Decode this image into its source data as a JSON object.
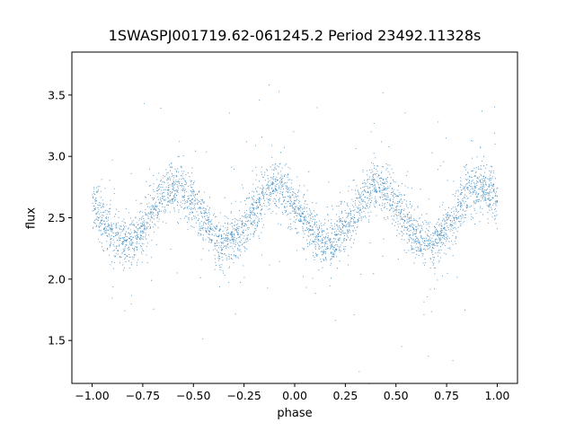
{
  "chart_data": {
    "type": "scatter",
    "title": "1SWASPJ001719.62-061245.2 Period 23492.11328s",
    "xlabel": "phase",
    "ylabel": "flux",
    "xlim": [
      -1.1,
      1.1
    ],
    "ylim": [
      1.15,
      3.85
    ],
    "xticks": [
      "−1.00",
      "−0.75",
      "−0.50",
      "−0.25",
      "0.00",
      "0.25",
      "0.50",
      "0.75",
      "1.00"
    ],
    "yticks": [
      "1.5",
      "2.0",
      "2.5",
      "3.0",
      "3.5"
    ],
    "grid": false,
    "legend": "none",
    "marker_color": "#1f77b4",
    "series": [
      {
        "x_range": [
          -1.0,
          1.0
        ],
        "baseline_flux": 2.52,
        "amplitude": 0.23,
        "phase_of_maxima": [
          -0.59,
          -0.08,
          0.41,
          0.92
        ],
        "phase_of_minima": [
          -0.84,
          -0.34,
          0.16,
          0.66
        ],
        "scatter_sd": 0.1,
        "approx_points": 40000
      }
    ]
  }
}
